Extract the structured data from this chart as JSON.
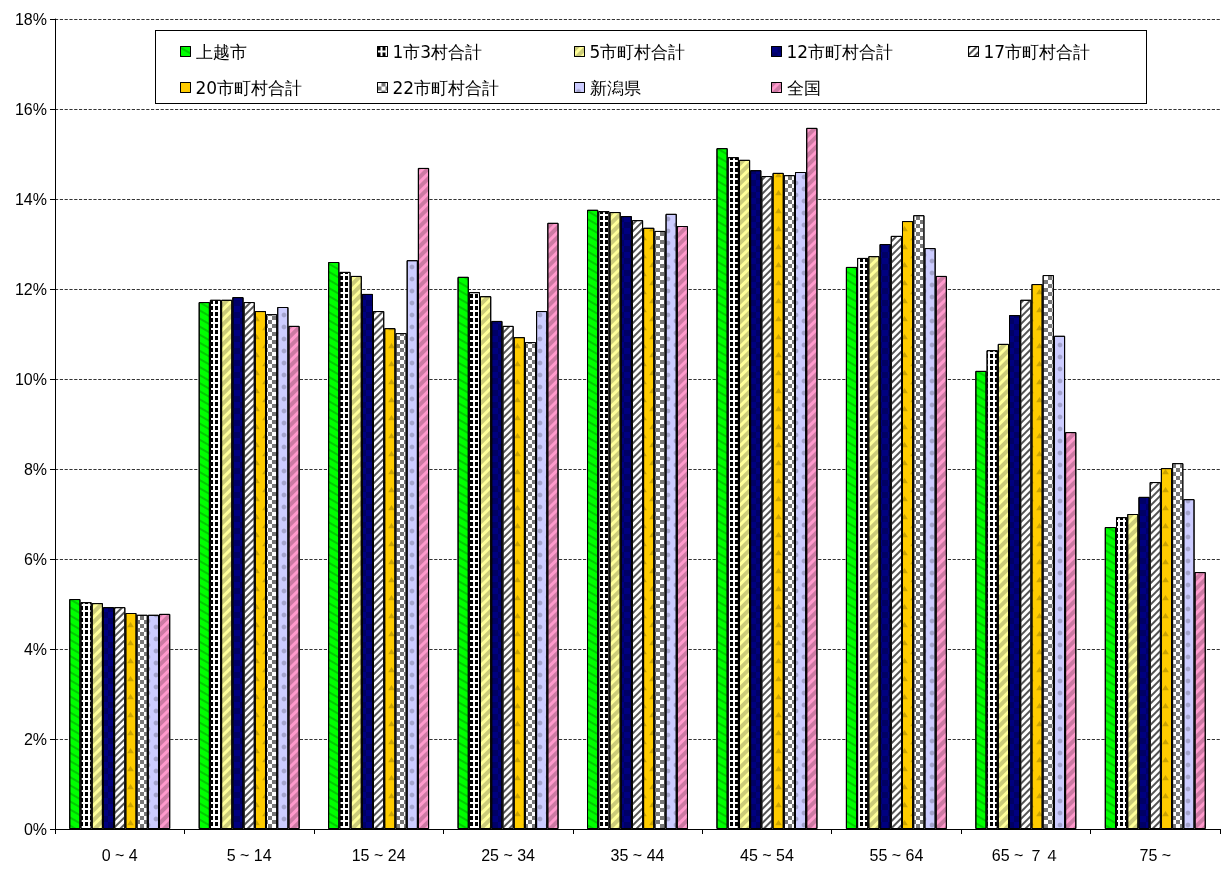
{
  "chart_data": {
    "type": "bar",
    "categories": [
      "0 ~ 4",
      "5 ~ 14",
      "15 ~ 24",
      "25 ~ 34",
      "35 ~ 44",
      "45 ~ 54",
      "55 ~ 64",
      "65 ~ ７４",
      "75 ~"
    ],
    "series": [
      {
        "name": "上越市",
        "color": "#00ff00",
        "values": [
          5.11,
          11.71,
          12.6,
          12.27,
          13.76,
          15.13,
          12.49,
          10.18,
          6.71
        ]
      },
      {
        "name": "1市3村合計",
        "color": "#ffffff",
        "values": [
          5.04,
          11.76,
          12.38,
          11.93,
          13.73,
          14.93,
          12.69,
          10.64,
          6.93
        ]
      },
      {
        "name": "5市町村合計",
        "color": "#ffff99",
        "values": [
          5.02,
          11.76,
          12.29,
          11.84,
          13.71,
          14.87,
          12.73,
          10.78,
          7.0
        ]
      },
      {
        "name": "12市町村合計",
        "color": "#000080",
        "values": [
          4.93,
          11.82,
          11.89,
          11.29,
          13.62,
          14.64,
          13.0,
          11.42,
          7.38
        ]
      },
      {
        "name": "17市町村合計",
        "color": "#ffffff",
        "values": [
          4.93,
          11.71,
          11.51,
          11.18,
          13.53,
          14.51,
          13.18,
          11.76,
          7.71
        ]
      },
      {
        "name": "20市町村合計",
        "color": "#ffcc00",
        "values": [
          4.8,
          11.51,
          11.13,
          10.93,
          13.36,
          14.58,
          13.51,
          12.11,
          8.02
        ]
      },
      {
        "name": "22市町村合計",
        "color": "#ffffff",
        "values": [
          4.76,
          11.44,
          11.02,
          10.82,
          13.29,
          14.53,
          13.64,
          12.31,
          8.13
        ]
      },
      {
        "name": "新潟県",
        "color": "#ccccff",
        "values": [
          4.76,
          11.6,
          12.64,
          11.51,
          13.67,
          14.6,
          12.91,
          10.96,
          7.33
        ]
      },
      {
        "name": "全国",
        "color": "#ff99cc",
        "values": [
          4.78,
          11.18,
          14.69,
          13.47,
          13.4,
          15.58,
          12.29,
          8.82,
          5.71
        ]
      }
    ],
    "ylim": [
      0,
      18
    ],
    "yticks": [
      {
        "value": 0,
        "label": "0%"
      },
      {
        "value": 2,
        "label": "2%"
      },
      {
        "value": 4,
        "label": "4%"
      },
      {
        "value": 6,
        "label": "6%"
      },
      {
        "value": 8,
        "label": "8%"
      },
      {
        "value": 10,
        "label": "10%"
      },
      {
        "value": 12,
        "label": "12%"
      },
      {
        "value": 14,
        "label": "14%"
      },
      {
        "value": 16,
        "label": "16%"
      },
      {
        "value": 18,
        "label": "18%"
      }
    ],
    "grid": "y",
    "legend": "top"
  }
}
